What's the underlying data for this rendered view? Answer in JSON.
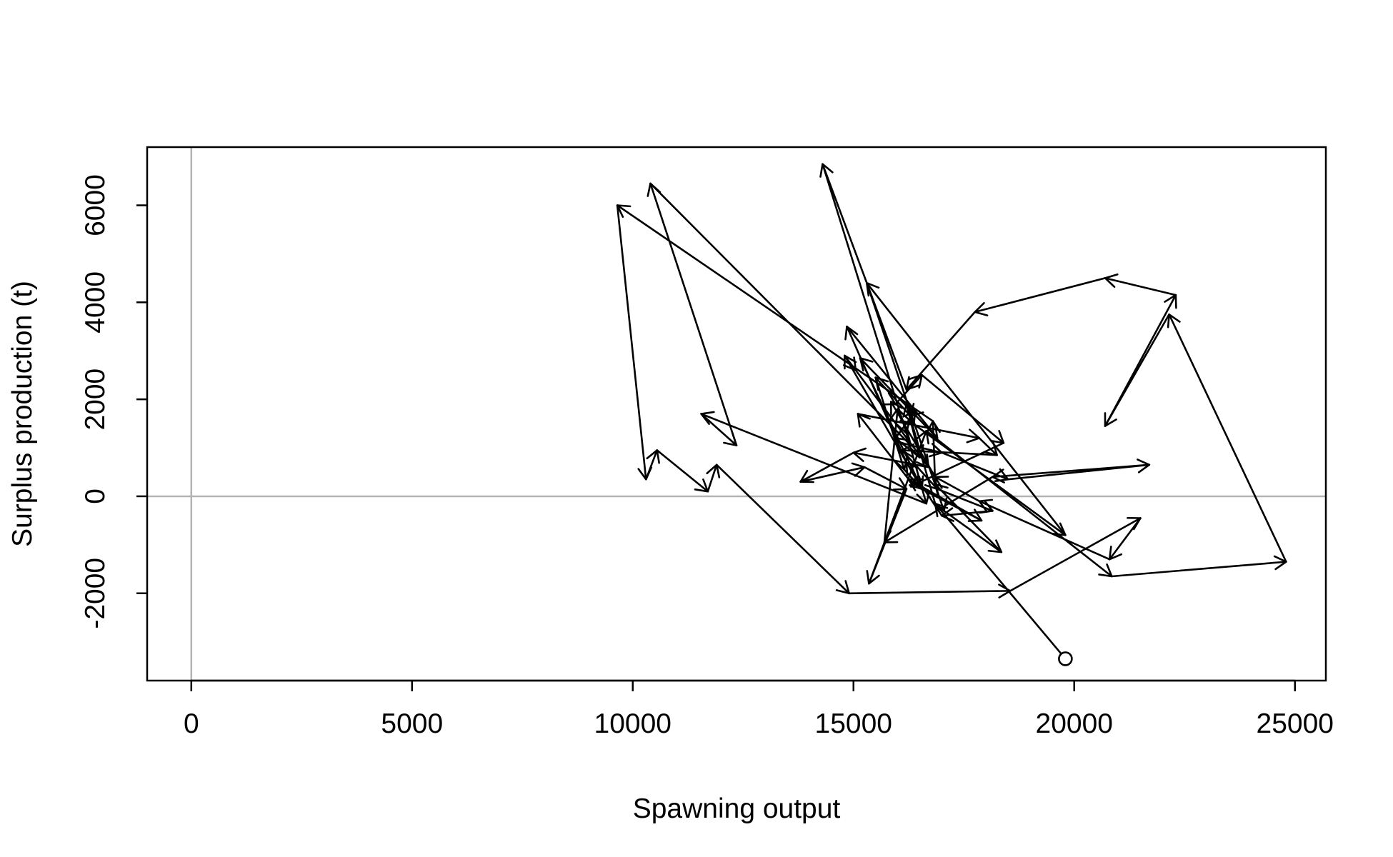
{
  "chart_data": {
    "type": "line",
    "title": "",
    "xlabel": "Spawning output",
    "ylabel": "Surplus production (t)",
    "xlim": [
      -1000,
      25700
    ],
    "ylim": [
      -3800,
      7200
    ],
    "xticks": [
      0,
      5000,
      10000,
      15000,
      20000,
      25000
    ],
    "yticks": [
      -2000,
      0,
      2000,
      4000,
      6000
    ],
    "xtick_labels": [
      "0",
      "5000",
      "10000",
      "15000",
      "20000",
      "25000"
    ],
    "ytick_labels": [
      "-2000",
      "0",
      "2000",
      "4000",
      "6000"
    ],
    "reference_lines": {
      "x": 0,
      "y": 0,
      "color": "#b3b3b3"
    },
    "grid": false,
    "legend": "none",
    "start_marker": "open circle",
    "arrow_color": "#000000",
    "series": [
      {
        "x": [
          19800,
          16850,
          16200,
          16500,
          15950,
          16400,
          16300,
          15500,
          16150,
          16550,
          17900,
          16250,
          15100,
          17850,
          18250,
          16100,
          16900,
          18150,
          17000,
          16200,
          14850,
          16900,
          15150,
          16550,
          14800,
          15050,
          16700,
          15000,
          13800,
          15250,
          16200,
          15350,
          16650,
          20850,
          24800,
          22150,
          20700,
          22300,
          20700,
          17750,
          16200,
          14300,
          16200,
          16650,
          11550,
          12350,
          10400,
          16300,
          17000,
          18500,
          21700,
          18150,
          15700,
          16000,
          16350,
          19800,
          15300,
          17050,
          18350,
          16850,
          16800,
          9650,
          10300,
          10550,
          11700,
          11900,
          14900,
          18550,
          21500,
          20800,
          17850,
          16850,
          15850,
          15950,
          16550,
          18400,
          16300
        ],
        "y": [
          -3350,
          -150,
          1900,
          800,
          1200,
          1750,
          1650,
          2450,
          550,
          150,
          -500,
          350,
          1700,
          1200,
          850,
          950,
          150,
          -300,
          -400,
          700,
          3500,
          1200,
          2850,
          150,
          2900,
          2600,
          600,
          900,
          300,
          600,
          150,
          -1800,
          1350,
          -1650,
          -1350,
          3750,
          1450,
          4150,
          4500,
          3800,
          2200,
          6850,
          1300,
          -150,
          1700,
          1050,
          6450,
          1050,
          900,
          350,
          650,
          400,
          -950,
          1800,
          1500,
          -800,
          4400,
          -300,
          -1150,
          250,
          1550,
          6000,
          350,
          950,
          100,
          650,
          -2000,
          -1950,
          -450,
          -1300,
          -100,
          400,
          1950,
          1900,
          2500,
          1100,
          200
        ]
      }
    ]
  }
}
